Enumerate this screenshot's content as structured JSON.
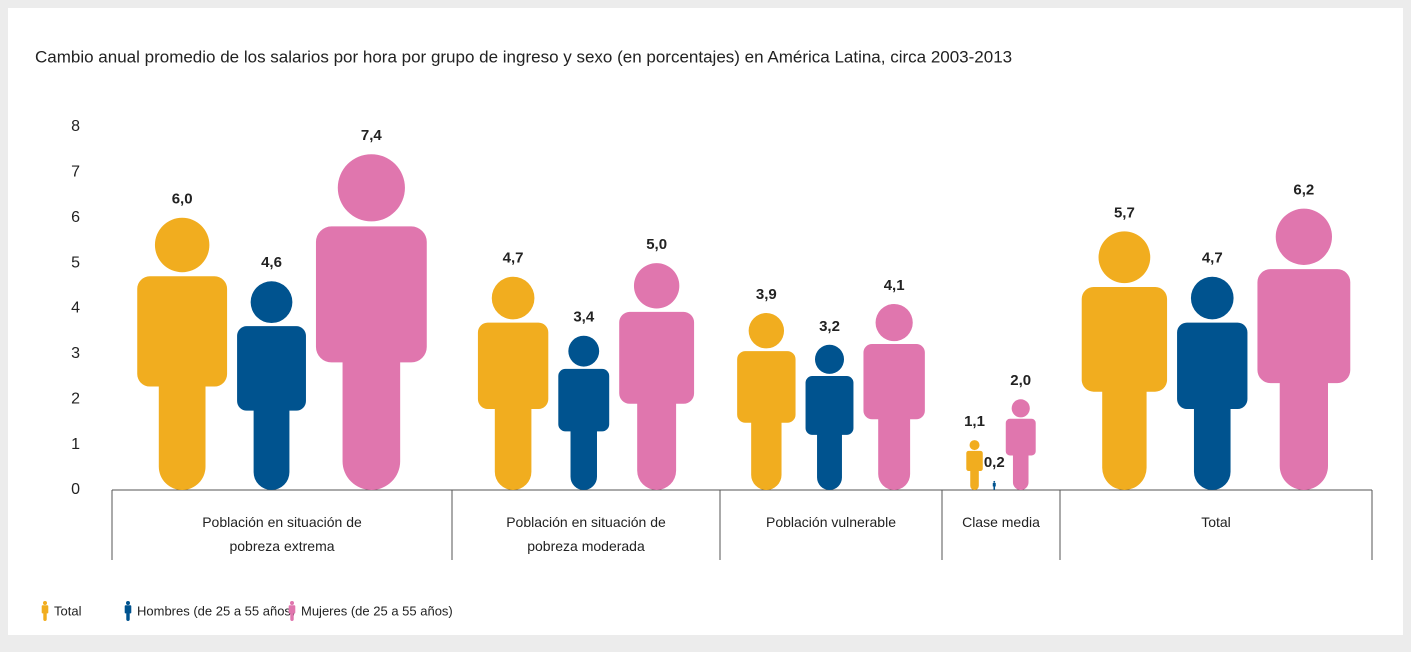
{
  "chart_data": {
    "type": "pictograph",
    "title": "Cambio anual promedio de los salarios por hora por grupo de ingreso y sexo (en porcentajes) en América Latina, circa 2003-2013",
    "categories": [
      "Población en situación de pobreza extrema",
      "Población en situación de pobreza moderada",
      "Población vulnerable",
      "Clase media",
      "Total"
    ],
    "series": [
      {
        "name": "Total",
        "color": "#f1ad1f",
        "values": [
          6.0,
          4.7,
          3.9,
          1.1,
          5.7
        ],
        "value_labels": [
          "6,0",
          "4,7",
          "3,9",
          "1,1",
          "5,7"
        ]
      },
      {
        "name": "Hombres (de 25 a 55 años)",
        "color": "#00538f",
        "values": [
          4.6,
          3.4,
          3.2,
          0.2,
          4.7
        ],
        "value_labels": [
          "4,6",
          "3,4",
          "3,2",
          "0,2",
          "4,7"
        ]
      },
      {
        "name": "Mujeres (de 25 a 55 años)",
        "color": "#e076ae",
        "values": [
          7.4,
          5.0,
          4.1,
          2.0,
          6.2
        ],
        "value_labels": [
          "7,4",
          "5,0",
          "4,1",
          "2,0",
          "6,2"
        ]
      }
    ],
    "ylim": [
      0,
      8
    ],
    "yticks": [
      0,
      1,
      2,
      3,
      4,
      5,
      6,
      7,
      8
    ],
    "grid": false
  }
}
